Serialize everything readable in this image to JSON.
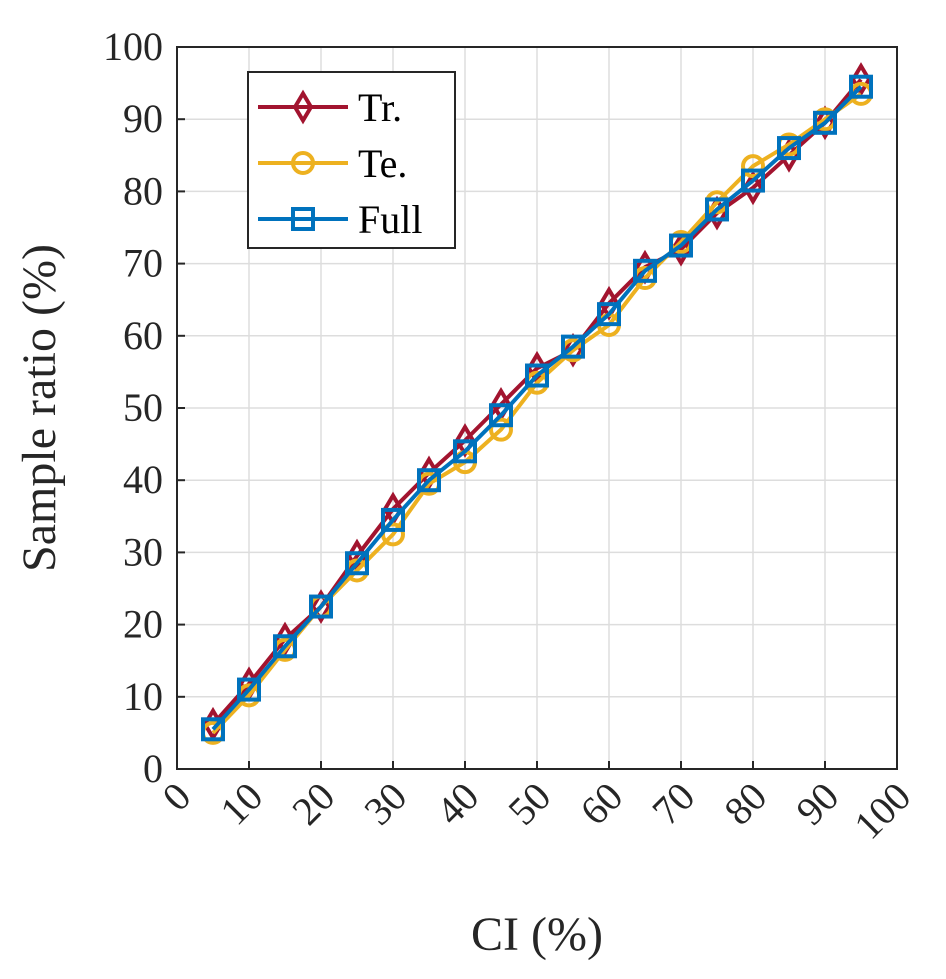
{
  "chart_data": {
    "type": "line",
    "xlabel": "CI (%)",
    "ylabel": "Sample ratio (%)",
    "xlim": [
      0,
      100
    ],
    "ylim": [
      0,
      100
    ],
    "xticks": [
      0,
      10,
      20,
      30,
      40,
      50,
      60,
      70,
      80,
      90,
      100
    ],
    "yticks": [
      0,
      10,
      20,
      30,
      40,
      50,
      60,
      70,
      80,
      90,
      100
    ],
    "grid": true,
    "legend_position": "top-left",
    "x": [
      5,
      10,
      15,
      20,
      25,
      30,
      35,
      40,
      45,
      50,
      55,
      60,
      65,
      70,
      75,
      80,
      85,
      90,
      95
    ],
    "series": [
      {
        "name": "Tr.",
        "color": "#A2142F",
        "marker": "diamond",
        "values": [
          6.2,
          11.8,
          18.0,
          22.5,
          29.5,
          36.0,
          41.0,
          45.5,
          50.5,
          55.5,
          58.0,
          64.5,
          69.5,
          72.0,
          77.0,
          80.5,
          85.0,
          89.5,
          95.5
        ]
      },
      {
        "name": "Te.",
        "color": "#EDB120",
        "marker": "circle",
        "values": [
          5.0,
          10.2,
          16.5,
          22.5,
          27.5,
          32.5,
          39.5,
          42.5,
          47.0,
          53.5,
          58.0,
          61.5,
          68.0,
          73.0,
          78.5,
          83.5,
          86.5,
          90.0,
          93.5
        ]
      },
      {
        "name": "Full",
        "color": "#0072BD",
        "marker": "square",
        "values": [
          5.5,
          11.0,
          17.0,
          22.5,
          28.5,
          34.5,
          40.0,
          44.0,
          49.0,
          54.5,
          58.5,
          63.0,
          69.0,
          72.5,
          77.5,
          81.5,
          86.0,
          89.5,
          94.5
        ]
      }
    ]
  }
}
